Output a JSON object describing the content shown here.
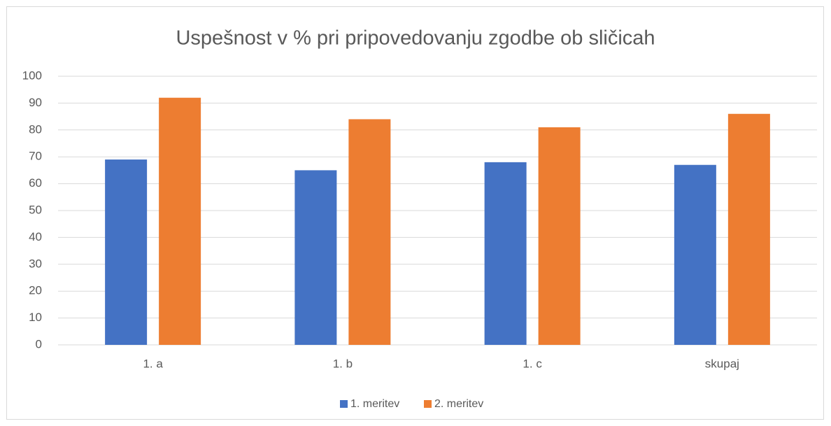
{
  "chart_data": {
    "type": "bar",
    "title": "Uspešnost v % pri pripovedovanju zgodbe ob sličicah",
    "categories": [
      "1. a",
      "1. b",
      "1. c",
      "skupaj"
    ],
    "series": [
      {
        "name": "1. meritev",
        "color": "#4472c4",
        "values": [
          69,
          65,
          68,
          67
        ]
      },
      {
        "name": "2. meritev",
        "color": "#ed7d31",
        "values": [
          92,
          84,
          81,
          86
        ]
      }
    ],
    "ylim": [
      0,
      100
    ],
    "yticks": [
      0,
      10,
      20,
      30,
      40,
      50,
      60,
      70,
      80,
      90,
      100
    ],
    "grid": true,
    "legend": "bottom"
  }
}
